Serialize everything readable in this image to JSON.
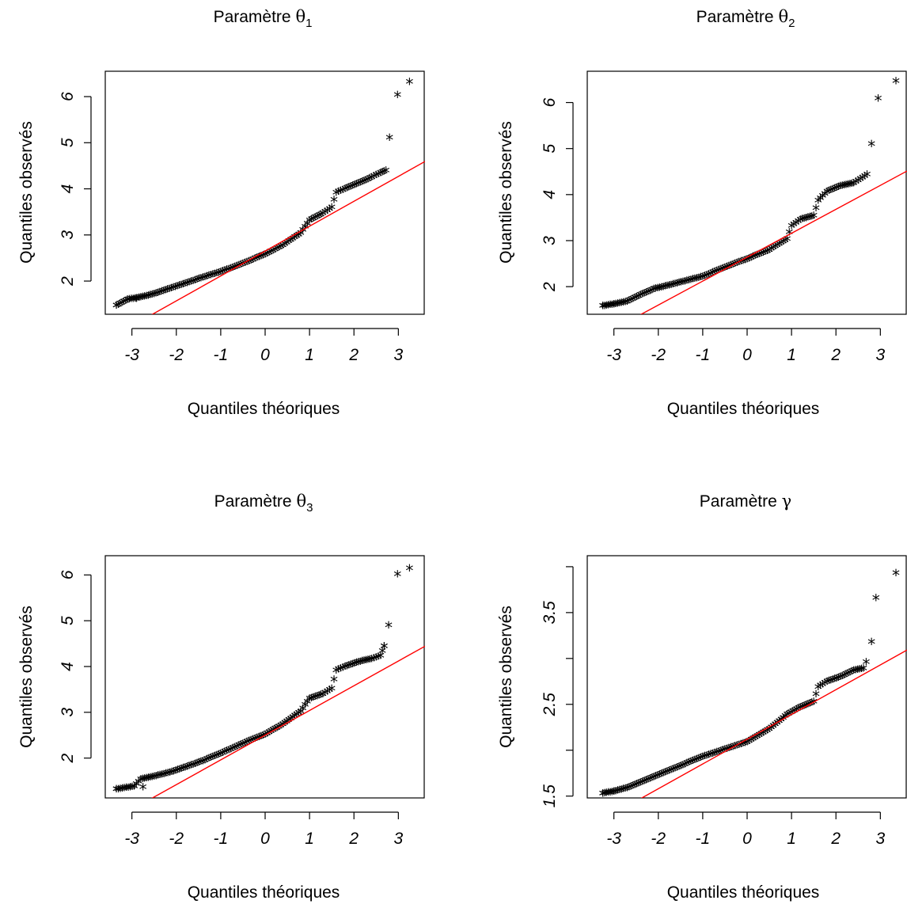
{
  "colors": {
    "points": "#000000",
    "reference_line": "#ff0000",
    "axes": "#000000",
    "background": "#ffffff"
  },
  "marker_glyph": "*",
  "chart_data": [
    {
      "type": "scatter",
      "title_text": "Paramètre ",
      "title_symbol": "θ",
      "title_subscript": "1",
      "xlabel": "Quantiles théoriques",
      "ylabel": "Quantiles observés",
      "xlim": [
        -3.6,
        3.6
      ],
      "ylim": [
        1.28,
        6.55
      ],
      "xticks": [
        -3,
        -2,
        -1,
        0,
        1,
        2,
        3
      ],
      "xtick_labels": [
        "-3",
        "-2",
        "-1",
        "0",
        "1",
        "2",
        "3"
      ],
      "yticks": [
        2,
        3,
        4,
        5,
        6
      ],
      "ytick_labels": [
        "2",
        "3",
        "4",
        "5",
        "6"
      ],
      "grid": false,
      "legend": "none",
      "curve": [
        [
          -3.35,
          1.45
        ],
        [
          -3.1,
          1.58
        ],
        [
          -2.8,
          1.63
        ],
        [
          -2.5,
          1.7
        ],
        [
          -2.2,
          1.8
        ],
        [
          -1.8,
          1.93
        ],
        [
          -1.4,
          2.06
        ],
        [
          -1.0,
          2.18
        ],
        [
          -0.5,
          2.36
        ],
        [
          0.0,
          2.56
        ],
        [
          0.4,
          2.76
        ],
        [
          0.8,
          3.02
        ],
        [
          1.0,
          3.3
        ],
        [
          1.3,
          3.45
        ],
        [
          1.5,
          3.58
        ],
        [
          1.6,
          3.9
        ],
        [
          1.8,
          3.98
        ],
        [
          2.1,
          4.1
        ],
        [
          2.4,
          4.23
        ],
        [
          2.6,
          4.33
        ],
        [
          2.72,
          4.38
        ]
      ],
      "outliers": [
        [
          -3.35,
          1.45
        ],
        [
          -3.1,
          1.58
        ],
        [
          -2.9,
          1.6
        ],
        [
          2.8,
          5.09
        ],
        [
          2.98,
          6.02
        ],
        [
          3.25,
          6.3
        ]
      ],
      "reference_line": {
        "slope": 0.54,
        "intercept": 2.65
      }
    },
    {
      "type": "scatter",
      "title_text": "Paramètre ",
      "title_symbol": "θ",
      "title_subscript": "2",
      "xlabel": "Quantiles théoriques",
      "ylabel": "Quantiles observés",
      "xlim": [
        -3.6,
        3.6
      ],
      "ylim": [
        1.4,
        6.68
      ],
      "xticks": [
        -3,
        -2,
        -1,
        0,
        1,
        2,
        3
      ],
      "xtick_labels": [
        "-3",
        "-2",
        "-1",
        "0",
        "1",
        "2",
        "3"
      ],
      "yticks": [
        2,
        3,
        4,
        5,
        6
      ],
      "ytick_labels": [
        "2",
        "3",
        "4",
        "5",
        "6"
      ],
      "grid": false,
      "legend": "none",
      "curve": [
        [
          -3.25,
          1.56
        ],
        [
          -3.0,
          1.6
        ],
        [
          -2.7,
          1.66
        ],
        [
          -2.4,
          1.8
        ],
        [
          -2.1,
          1.93
        ],
        [
          -1.8,
          2.0
        ],
        [
          -1.4,
          2.1
        ],
        [
          -1.0,
          2.2
        ],
        [
          -0.5,
          2.4
        ],
        [
          0.0,
          2.58
        ],
        [
          0.5,
          2.78
        ],
        [
          0.9,
          3.02
        ],
        [
          1.0,
          3.3
        ],
        [
          1.2,
          3.44
        ],
        [
          1.5,
          3.52
        ],
        [
          1.6,
          3.85
        ],
        [
          1.8,
          4.05
        ],
        [
          2.1,
          4.17
        ],
        [
          2.4,
          4.23
        ],
        [
          2.6,
          4.35
        ],
        [
          2.7,
          4.42
        ]
      ],
      "outliers": [
        [
          -3.25,
          1.56
        ],
        [
          -3.0,
          1.6
        ],
        [
          2.8,
          5.08
        ],
        [
          2.95,
          6.07
        ],
        [
          3.35,
          6.45
        ]
      ],
      "reference_line": {
        "slope": 0.52,
        "intercept": 2.64
      }
    },
    {
      "type": "scatter",
      "title_text": "Paramètre ",
      "title_symbol": "θ",
      "title_subscript": "3",
      "xlabel": "Quantiles théoriques",
      "ylabel": "Quantiles observés",
      "xlim": [
        -3.6,
        3.6
      ],
      "ylim": [
        1.13,
        6.42
      ],
      "xticks": [
        -3,
        -2,
        -1,
        0,
        1,
        2,
        3
      ],
      "xtick_labels": [
        "-3",
        "-2",
        "-1",
        "0",
        "1",
        "2",
        "3"
      ],
      "yticks": [
        2,
        3,
        4,
        5,
        6
      ],
      "ytick_labels": [
        "2",
        "3",
        "4",
        "5",
        "6"
      ],
      "grid": false,
      "legend": "none",
      "curve": [
        [
          -3.35,
          1.3
        ],
        [
          -2.95,
          1.36
        ],
        [
          -2.8,
          1.52
        ],
        [
          -2.5,
          1.58
        ],
        [
          -2.1,
          1.68
        ],
        [
          -1.8,
          1.78
        ],
        [
          -1.4,
          1.92
        ],
        [
          -1.0,
          2.08
        ],
        [
          -0.5,
          2.3
        ],
        [
          0.0,
          2.5
        ],
        [
          0.4,
          2.72
        ],
        [
          0.8,
          3.0
        ],
        [
          1.0,
          3.28
        ],
        [
          1.3,
          3.38
        ],
        [
          1.5,
          3.5
        ],
        [
          1.6,
          3.9
        ],
        [
          1.8,
          3.98
        ],
        [
          2.1,
          4.08
        ],
        [
          2.4,
          4.15
        ],
        [
          2.6,
          4.22
        ],
        [
          2.68,
          4.42
        ]
      ],
      "outliers": [
        [
          -3.35,
          1.3
        ],
        [
          -2.95,
          1.36
        ],
        [
          -2.75,
          1.35
        ],
        [
          2.68,
          4.42
        ],
        [
          2.78,
          4.88
        ],
        [
          2.98,
          6.0
        ],
        [
          3.25,
          6.13
        ]
      ],
      "reference_line": {
        "slope": 0.54,
        "intercept": 2.5
      }
    },
    {
      "type": "scatter",
      "title_text": "Paramètre ",
      "title_symbol": "γ",
      "title_subscript": "",
      "xlabel": "Quantiles théoriques",
      "ylabel": "Quantiles observés",
      "xlim": [
        -3.6,
        3.6
      ],
      "ylim": [
        1.48,
        4.12
      ],
      "xticks": [
        -3,
        -2,
        -1,
        0,
        1,
        2,
        3
      ],
      "xtick_labels": [
        "-3",
        "-2",
        "-1",
        "0",
        "1",
        "2",
        "3"
      ],
      "yticks": [
        1.5,
        2.0,
        2.5,
        3.0,
        3.5,
        4.0
      ],
      "ytick_labels": [
        "1.5",
        "",
        "2.5",
        "",
        "3.5",
        ""
      ],
      "grid": false,
      "legend": "none",
      "curve": [
        [
          -3.25,
          1.52
        ],
        [
          -3.0,
          1.54
        ],
        [
          -2.7,
          1.58
        ],
        [
          -2.4,
          1.64
        ],
        [
          -2.1,
          1.7
        ],
        [
          -1.8,
          1.76
        ],
        [
          -1.4,
          1.84
        ],
        [
          -1.0,
          1.92
        ],
        [
          -0.5,
          2.0
        ],
        [
          0.0,
          2.08
        ],
        [
          0.5,
          2.22
        ],
        [
          0.9,
          2.38
        ],
        [
          1.2,
          2.46
        ],
        [
          1.5,
          2.52
        ],
        [
          1.6,
          2.68
        ],
        [
          1.8,
          2.74
        ],
        [
          2.1,
          2.79
        ],
        [
          2.4,
          2.86
        ],
        [
          2.62,
          2.88
        ]
      ],
      "outliers": [
        [
          -3.25,
          1.52
        ],
        [
          -3.0,
          1.54
        ],
        [
          2.68,
          2.95
        ],
        [
          2.8,
          3.17
        ],
        [
          2.9,
          3.65
        ],
        [
          3.35,
          3.92
        ]
      ],
      "reference_line": {
        "slope": 0.27,
        "intercept": 2.12
      }
    }
  ]
}
